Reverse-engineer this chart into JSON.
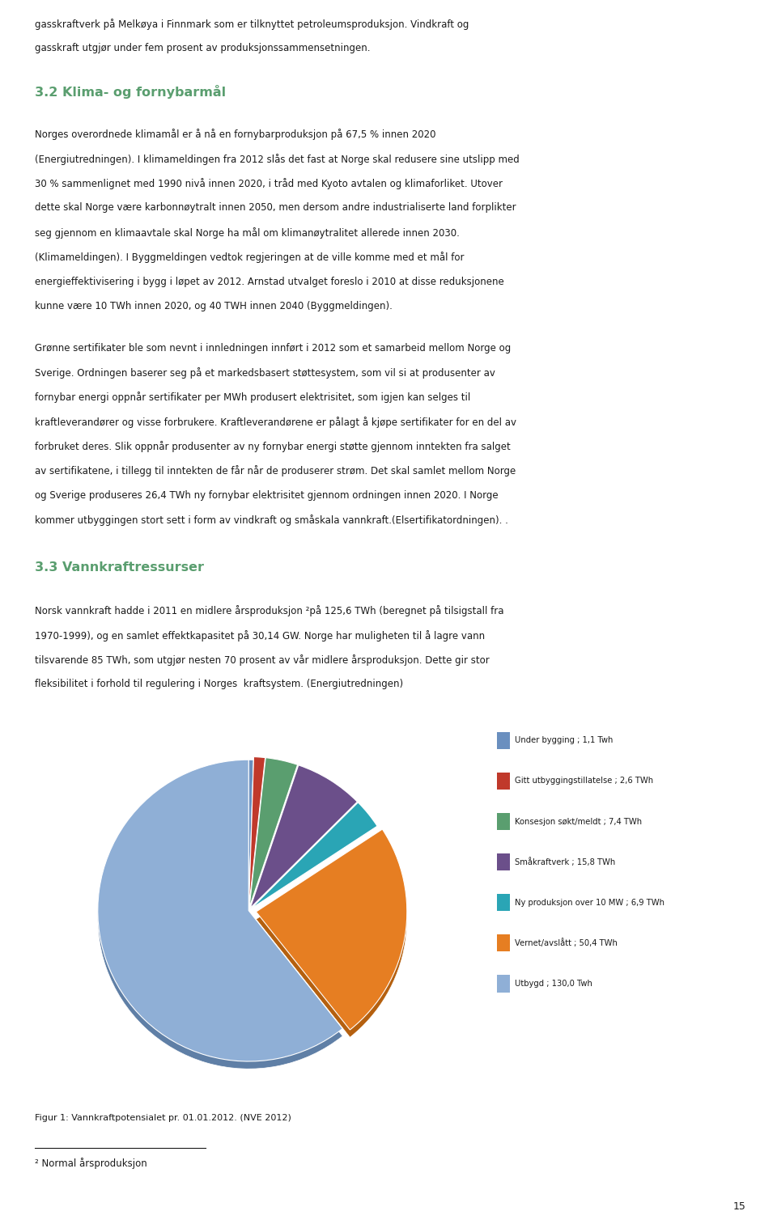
{
  "page_width": 9.6,
  "page_height": 15.18,
  "background_color": "#ffffff",
  "heading1_color": "#5a9e6f",
  "heading1_text_32": "3.2 Klima- og fornybarmål",
  "heading1_text_33": "3.3 Vannkraftressurser",
  "body_text_color": "#1a1a1a",
  "text_32": [
    "Norges overordnede klimamål er å nå en fornybarproduksjon på 67,5 % innen 2020",
    "(Energiutredningen). I klimameldingen fra 2012 slås det fast at Norge skal redusere sine utslipp med",
    "30 % sammenlignet med 1990 nivå innen 2020, i tråd med Kyoto avtalen og klimaforliket. Utover",
    "dette skal Norge være karbonnøytralt innen 2050, men dersom andre industrialiserte land forplikter",
    "seg gjennom en klimaavtale skal Norge ha mål om klimanøytralitet allerede innen 2030.",
    "(Klimameldingen). I Byggmeldingen vedtok regjeringen at de ville komme med et mål for",
    "energieffektivisering i bygg i løpet av 2012. Arnstad utvalget foreslo i 2010 at disse reduksjonene",
    "kunne være 10 TWh innen 2020, og 40 TWH innen 2040 (Byggmeldingen)."
  ],
  "text_sertifikat": [
    "Grønne sertifikater ble som nevnt i innledningen innført i 2012 som et samarbeid mellom Norge og",
    "Sverige. Ordningen baserer seg på et markedsbasert støttesystem, som vil si at produsenter av",
    "fornybar energi oppnår sertifikater per MWh produsert elektrisitet, som igjen kan selges til",
    "kraftleverandører og visse forbrukere. Kraftleverandørene er pålagt å kjøpe sertifikater for en del av",
    "forbruket deres. Slik oppnår produsenter av ny fornybar energi støtte gjennom inntekten fra salget",
    "av sertifikatene, i tillegg til inntekten de får når de produserer strøm. Det skal samlet mellom Norge",
    "og Sverige produseres 26,4 TWh ny fornybar elektrisitet gjennom ordningen innen 2020. I Norge",
    "kommer utbyggingen stort sett i form av vindkraft og småskala vannkraft.(Elsertifikatordningen). ."
  ],
  "text_33": [
    "Norsk vannkraft hadde i 2011 en midlere årsproduksjon ²på 125,6 TWh (beregnet på tilsigstall fra",
    "1970-1999), og en samlet effektkapasitet på 30,14 GW. Norge har muligheten til å lagre vann",
    "tilsvarende 85 TWh, som utgjør nesten 70 prosent av vår midlere årsproduksjon. Dette gir stor",
    "fleksibilitet i forhold til regulering i Norges  kraftsystem. (Energiutredningen)"
  ],
  "intro_lines": [
    "gasskraftverk på Melkøya i Finnmark som er tilknyttet petroleumsproduksjon. Vindkraft og",
    "gasskraft utgjør under fem prosent av produksjonssammensetningen."
  ],
  "pie_values": [
    1.1,
    2.6,
    7.4,
    15.8,
    6.9,
    50.4,
    130.0
  ],
  "pie_labels": [
    "Under bygging ; 1,1 Twh",
    "Gitt utbyggingstillatelse ; 2,6 TWh",
    "Konsesjon søkt/meldt ; 7,4 TWh",
    "Småkraftverk ; 15,8 TWh",
    "Ny produksjon over 10 MW ; 6,9 TWh",
    "Vernet/avslått ; 50,4 TWh",
    "Utbygd ; 130,0 Twh"
  ],
  "pie_colors": [
    "#6a8fbf",
    "#c0392b",
    "#5a9e6f",
    "#6b4f8a",
    "#2aa5b5",
    "#e67e22",
    "#8fafd6"
  ],
  "pie_dark_colors": [
    "#3a5f8f",
    "#922b21",
    "#2e7a4f",
    "#3d2b5a",
    "#1a7585",
    "#b5600f",
    "#5f7fa6"
  ],
  "figure_caption": "Figur 1: Vannkraftpotensialet pr. 01.01.2012. (NVE 2012)",
  "footnote": "² Normal årsproduksjon",
  "page_number": "15"
}
